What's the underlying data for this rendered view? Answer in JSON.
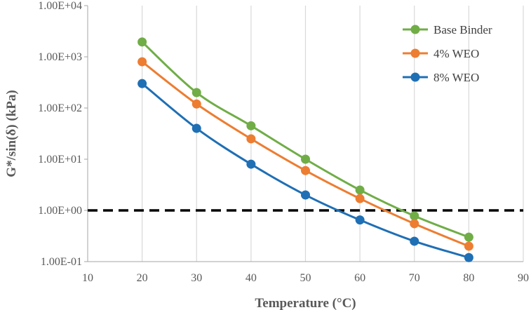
{
  "chart_data": {
    "type": "scatter",
    "xlabel": "Temperature (°C)",
    "ylabel": "G*/sin(δ)   (kPa)",
    "x_scale": "linear",
    "y_scale": "log",
    "xlim": [
      10,
      90
    ],
    "ylim": [
      0.1,
      10000
    ],
    "x_ticks": [
      10,
      20,
      30,
      40,
      50,
      60,
      70,
      80,
      90
    ],
    "x_tick_labels": [
      "10",
      "20",
      "30",
      "40",
      "50",
      "60",
      "70",
      "80",
      "90"
    ],
    "y_ticks": [
      0.1,
      1,
      10,
      100,
      1000,
      10000
    ],
    "y_tick_labels": [
      "1.00E-01",
      "1.00E+00",
      "1.00E+01",
      "1.00E+02",
      "1.00E+03",
      "1.00E+04"
    ],
    "grid": "vertical",
    "legend_position": "top-right",
    "series": [
      {
        "name": "Base Binder",
        "color": "#70AD47",
        "x": [
          20,
          30,
          40,
          50,
          60,
          70,
          80
        ],
        "y": [
          1950,
          200,
          45,
          10,
          2.5,
          0.78,
          0.3
        ]
      },
      {
        "name": "4% WEO",
        "color": "#ED7D31",
        "x": [
          20,
          30,
          40,
          50,
          60,
          70,
          80
        ],
        "y": [
          800,
          120,
          25,
          6,
          1.7,
          0.55,
          0.2
        ]
      },
      {
        "name": "8% WEO",
        "color": "#1F6FB5",
        "x": [
          20,
          30,
          40,
          50,
          60,
          70,
          80
        ],
        "y": [
          300,
          40,
          8,
          2,
          0.65,
          0.25,
          0.12
        ]
      }
    ],
    "reference_line": {
      "y": 1,
      "style": "dashed",
      "color": "#000000"
    }
  }
}
